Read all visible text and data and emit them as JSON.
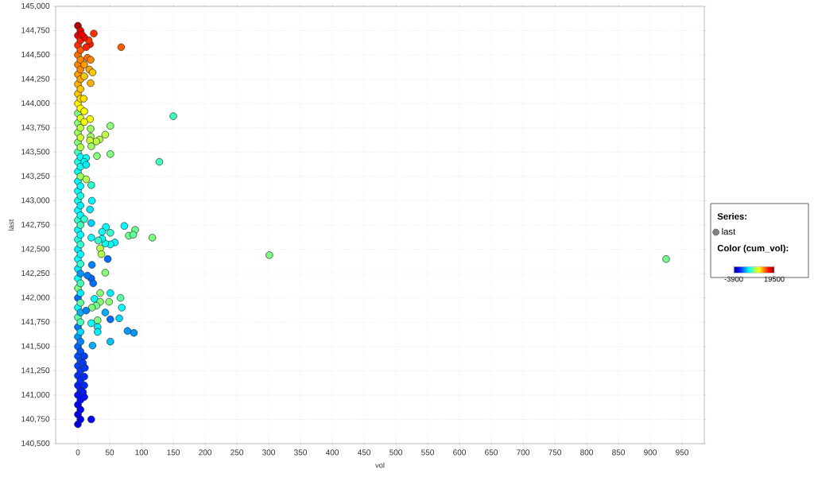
{
  "chart_data": {
    "type": "scatter",
    "xlabel": "vol",
    "ylabel": "last",
    "legend_title": "Series:",
    "clabel": "Color (cum_vol):",
    "series": [
      {
        "name": "last",
        "x": [
          0,
          0,
          0,
          0,
          0,
          0,
          0,
          0,
          0,
          0,
          0,
          0,
          0,
          0,
          0,
          0,
          0,
          0,
          0,
          0,
          0,
          0,
          0,
          0,
          0,
          0,
          0,
          0,
          0,
          0,
          0,
          0,
          0,
          0,
          0,
          0,
          0,
          0,
          0,
          0,
          0,
          0,
          4,
          4,
          4,
          4,
          4,
          4,
          4,
          4,
          4,
          4,
          4,
          4,
          4,
          4,
          4,
          4,
          4,
          4,
          4,
          4,
          4,
          4,
          4,
          4,
          4,
          4,
          4,
          4,
          4,
          4,
          4,
          4,
          4,
          4,
          4,
          4,
          4,
          4,
          4,
          4,
          4,
          25,
          68,
          19,
          17,
          10,
          13,
          6,
          15,
          20,
          10,
          18,
          23,
          20,
          10,
          9,
          10,
          19,
          10,
          20,
          51,
          43,
          20,
          34,
          29,
          19,
          21,
          30,
          51,
          13,
          10,
          13,
          13,
          21,
          22,
          19,
          10,
          21,
          44,
          73,
          90,
          150,
          128,
          117,
          301,
          925,
          80,
          87,
          58,
          51,
          43,
          38,
          32,
          51,
          38,
          21,
          35,
          37,
          47,
          22,
          43,
          21,
          24,
          15,
          35,
          51,
          67,
          26,
          35,
          49,
          69,
          29,
          22,
          43,
          13,
          51,
          65,
          31,
          21,
          31,
          31,
          78,
          88,
          23,
          51,
          21,
          10,
          8,
          11,
          10,
          10,
          8,
          10
        ],
        "values": [
          140700,
          140800,
          140900,
          141000,
          141100,
          141200,
          141300,
          141400,
          141500,
          141600,
          141700,
          141800,
          141900,
          142000,
          142100,
          142200,
          142300,
          142400,
          142500,
          142600,
          142700,
          142800,
          142900,
          143000,
          143100,
          143200,
          143300,
          143400,
          143500,
          143600,
          143700,
          143800,
          143900,
          144000,
          144100,
          144200,
          144300,
          144400,
          144500,
          144600,
          144700,
          144800,
          140750,
          140850,
          140950,
          141050,
          141150,
          141250,
          141350,
          141450,
          141550,
          141650,
          141750,
          141850,
          141950,
          142050,
          142150,
          142250,
          142350,
          142450,
          142550,
          142650,
          142750,
          142850,
          142950,
          143050,
          143150,
          143250,
          143350,
          143450,
          143550,
          143650,
          143750,
          143850,
          143950,
          144050,
          144150,
          144250,
          144350,
          144450,
          144550,
          144650,
          144750,
          144720,
          144580,
          144610,
          144650,
          144680,
          144580,
          144710,
          144470,
          144450,
          144400,
          144350,
          144320,
          144210,
          144280,
          144050,
          143920,
          143840,
          143810,
          143740,
          143770,
          143680,
          143660,
          143630,
          143610,
          143620,
          143560,
          143460,
          143480,
          143440,
          143400,
          143370,
          143220,
          143160,
          143000,
          142910,
          142810,
          142770,
          142730,
          142740,
          142700,
          143870,
          143400,
          142620,
          142440,
          142400,
          142640,
          142650,
          142570,
          142550,
          142560,
          142610,
          142590,
          142670,
          142680,
          142620,
          142510,
          142450,
          142400,
          142340,
          142260,
          142200,
          142150,
          142230,
          142050,
          142050,
          142000,
          141990,
          141960,
          141960,
          141900,
          141920,
          141900,
          141850,
          141870,
          141780,
          141790,
          141770,
          141740,
          141700,
          141650,
          141660,
          141640,
          141510,
          141550,
          140750,
          141400,
          141330,
          141280,
          141190,
          141100,
          141030,
          140980
        ],
        "cvalues": [
          -1700,
          -1400,
          -1100,
          -700,
          -300,
          100,
          500,
          900,
          1300,
          2500,
          1800,
          7000,
          5000,
          1500,
          7800,
          5000,
          4500,
          5000,
          4500,
          5500,
          4800,
          6000,
          5000,
          5200,
          5000,
          4800,
          5000,
          5500,
          6500,
          8000,
          8500,
          8000,
          7800,
          11000,
          12000,
          12500,
          13000,
          13500,
          14000,
          15500,
          16800,
          18300,
          -1300,
          -1000,
          -800,
          -400,
          0,
          300,
          600,
          900,
          2000,
          4000,
          6500,
          3000,
          7000,
          4500,
          6500,
          2500,
          6000,
          4800,
          6000,
          5000,
          6500,
          5000,
          4500,
          5500,
          4800,
          8500,
          5200,
          4800,
          9000,
          9500,
          9200,
          10000,
          10800,
          11500,
          12000,
          12800,
          13500,
          13500,
          14500,
          15800,
          17000,
          15500,
          14500,
          16000,
          15500,
          16500,
          15800,
          17000,
          14000,
          13500,
          13000,
          12800,
          12000,
          12500,
          12000,
          11500,
          10800,
          10500,
          10500,
          8500,
          8000,
          9200,
          8500,
          9000,
          9200,
          9500,
          8500,
          8000,
          7800,
          5000,
          5000,
          4500,
          9000,
          6000,
          4800,
          4300,
          6000,
          3800,
          5000,
          5000,
          7500,
          6300,
          6300,
          7800,
          7800,
          7500,
          7500,
          7200,
          5000,
          5000,
          5200,
          5000,
          6000,
          6000,
          5000,
          5000,
          9000,
          9000,
          1500,
          2000,
          8000,
          1500,
          1500,
          1800,
          8000,
          4500,
          7000,
          4800,
          8000,
          8000,
          5000,
          7500,
          7800,
          3000,
          2000,
          1500,
          4000,
          7800,
          5000,
          4500,
          4500,
          2500,
          2500,
          3000,
          3500,
          -800,
          500,
          400,
          300,
          100,
          -100,
          -400,
          -600
        ]
      }
    ],
    "xlim": [
      -35,
      985
    ],
    "ylim": [
      140500,
      145000
    ],
    "xticks": [
      0,
      50,
      100,
      150,
      200,
      250,
      300,
      350,
      400,
      450,
      500,
      550,
      600,
      650,
      700,
      750,
      800,
      850,
      900,
      950
    ],
    "yticks": [
      {
        "value": 140500,
        "label": "140,500"
      },
      {
        "value": 140750,
        "label": "140,750"
      },
      {
        "value": 141000,
        "label": "141,000"
      },
      {
        "value": 141250,
        "label": "141,250"
      },
      {
        "value": 141500,
        "label": "141,500"
      },
      {
        "value": 141750,
        "label": "141,750"
      },
      {
        "value": 142000,
        "label": "142,000"
      },
      {
        "value": 142250,
        "label": "142,250"
      },
      {
        "value": 142500,
        "label": "142,500"
      },
      {
        "value": 142750,
        "label": "142,750"
      },
      {
        "value": 143000,
        "label": "143,000"
      },
      {
        "value": 143250,
        "label": "143,250"
      },
      {
        "value": 143500,
        "label": "143,500"
      },
      {
        "value": 143750,
        "label": "143,750"
      },
      {
        "value": 144000,
        "label": "144,000"
      },
      {
        "value": 144250,
        "label": "144,250"
      },
      {
        "value": 144500,
        "label": "144,500"
      },
      {
        "value": 144750,
        "label": "144,750"
      },
      {
        "value": 145000,
        "label": "145,000"
      }
    ],
    "clim": [
      -3900,
      19500
    ],
    "cticks": [
      -3900,
      19500
    ],
    "grid": true,
    "legend": "right",
    "marker": "circle"
  }
}
